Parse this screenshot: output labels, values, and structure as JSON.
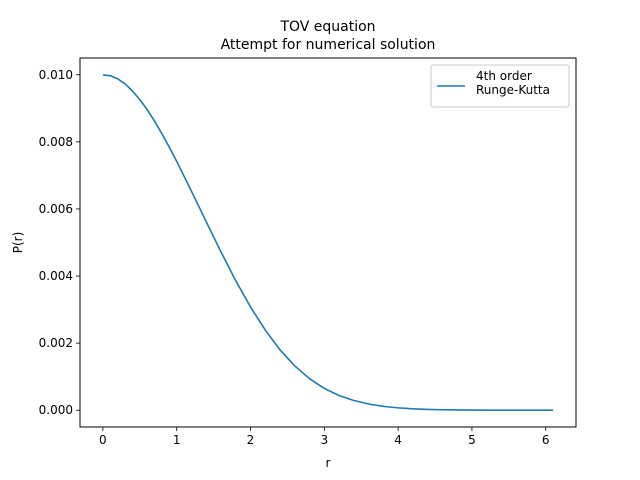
{
  "chart_data": {
    "type": "line",
    "title": "TOV equation",
    "subtitle": "Attempt for numerical solution",
    "xlabel": "r",
    "ylabel": "P(r)",
    "xlim": [
      -0.31,
      6.41
    ],
    "ylim": [
      -0.0005,
      0.0105
    ],
    "xticks": [
      0,
      1,
      2,
      3,
      4,
      5,
      6
    ],
    "xtick_labels": [
      "0",
      "1",
      "2",
      "3",
      "4",
      "5",
      "6"
    ],
    "yticks": [
      0.0,
      0.002,
      0.004,
      0.006,
      0.008,
      0.01
    ],
    "ytick_labels": [
      "0.000",
      "0.002",
      "0.004",
      "0.006",
      "0.008",
      "0.010"
    ],
    "grid": false,
    "legend_position": "top-right",
    "series": [
      {
        "name": "4th order\nRunge-Kutta",
        "color": "#1f77b4",
        "x": [
          0,
          0.1,
          0.2,
          0.3,
          0.4,
          0.5,
          0.6,
          0.7,
          0.8,
          0.9,
          1.0,
          1.2,
          1.4,
          1.6,
          1.8,
          2.0,
          2.2,
          2.4,
          2.6,
          2.8,
          3.0,
          3.2,
          3.4,
          3.6,
          3.8,
          4.0,
          4.2,
          4.4,
          4.6,
          4.8,
          5.0,
          5.2,
          5.4,
          5.6,
          5.8,
          6.0,
          6.1
        ],
        "y": [
          0.01,
          0.00997,
          0.00988,
          0.00973,
          0.00952,
          0.00926,
          0.00896,
          0.00862,
          0.00824,
          0.00784,
          0.00742,
          0.00653,
          0.00562,
          0.00472,
          0.00386,
          0.00308,
          0.00239,
          0.0018,
          0.00132,
          0.00094,
          0.00065,
          0.00044,
          0.00029,
          0.000185,
          0.000115,
          7e-05,
          4.1e-05,
          2.4e-05,
          1.4e-05,
          8e-06,
          4.5e-06,
          2.5e-06,
          1.4e-06,
          8e-07,
          4e-07,
          2e-07,
          1e-07
        ]
      }
    ]
  }
}
